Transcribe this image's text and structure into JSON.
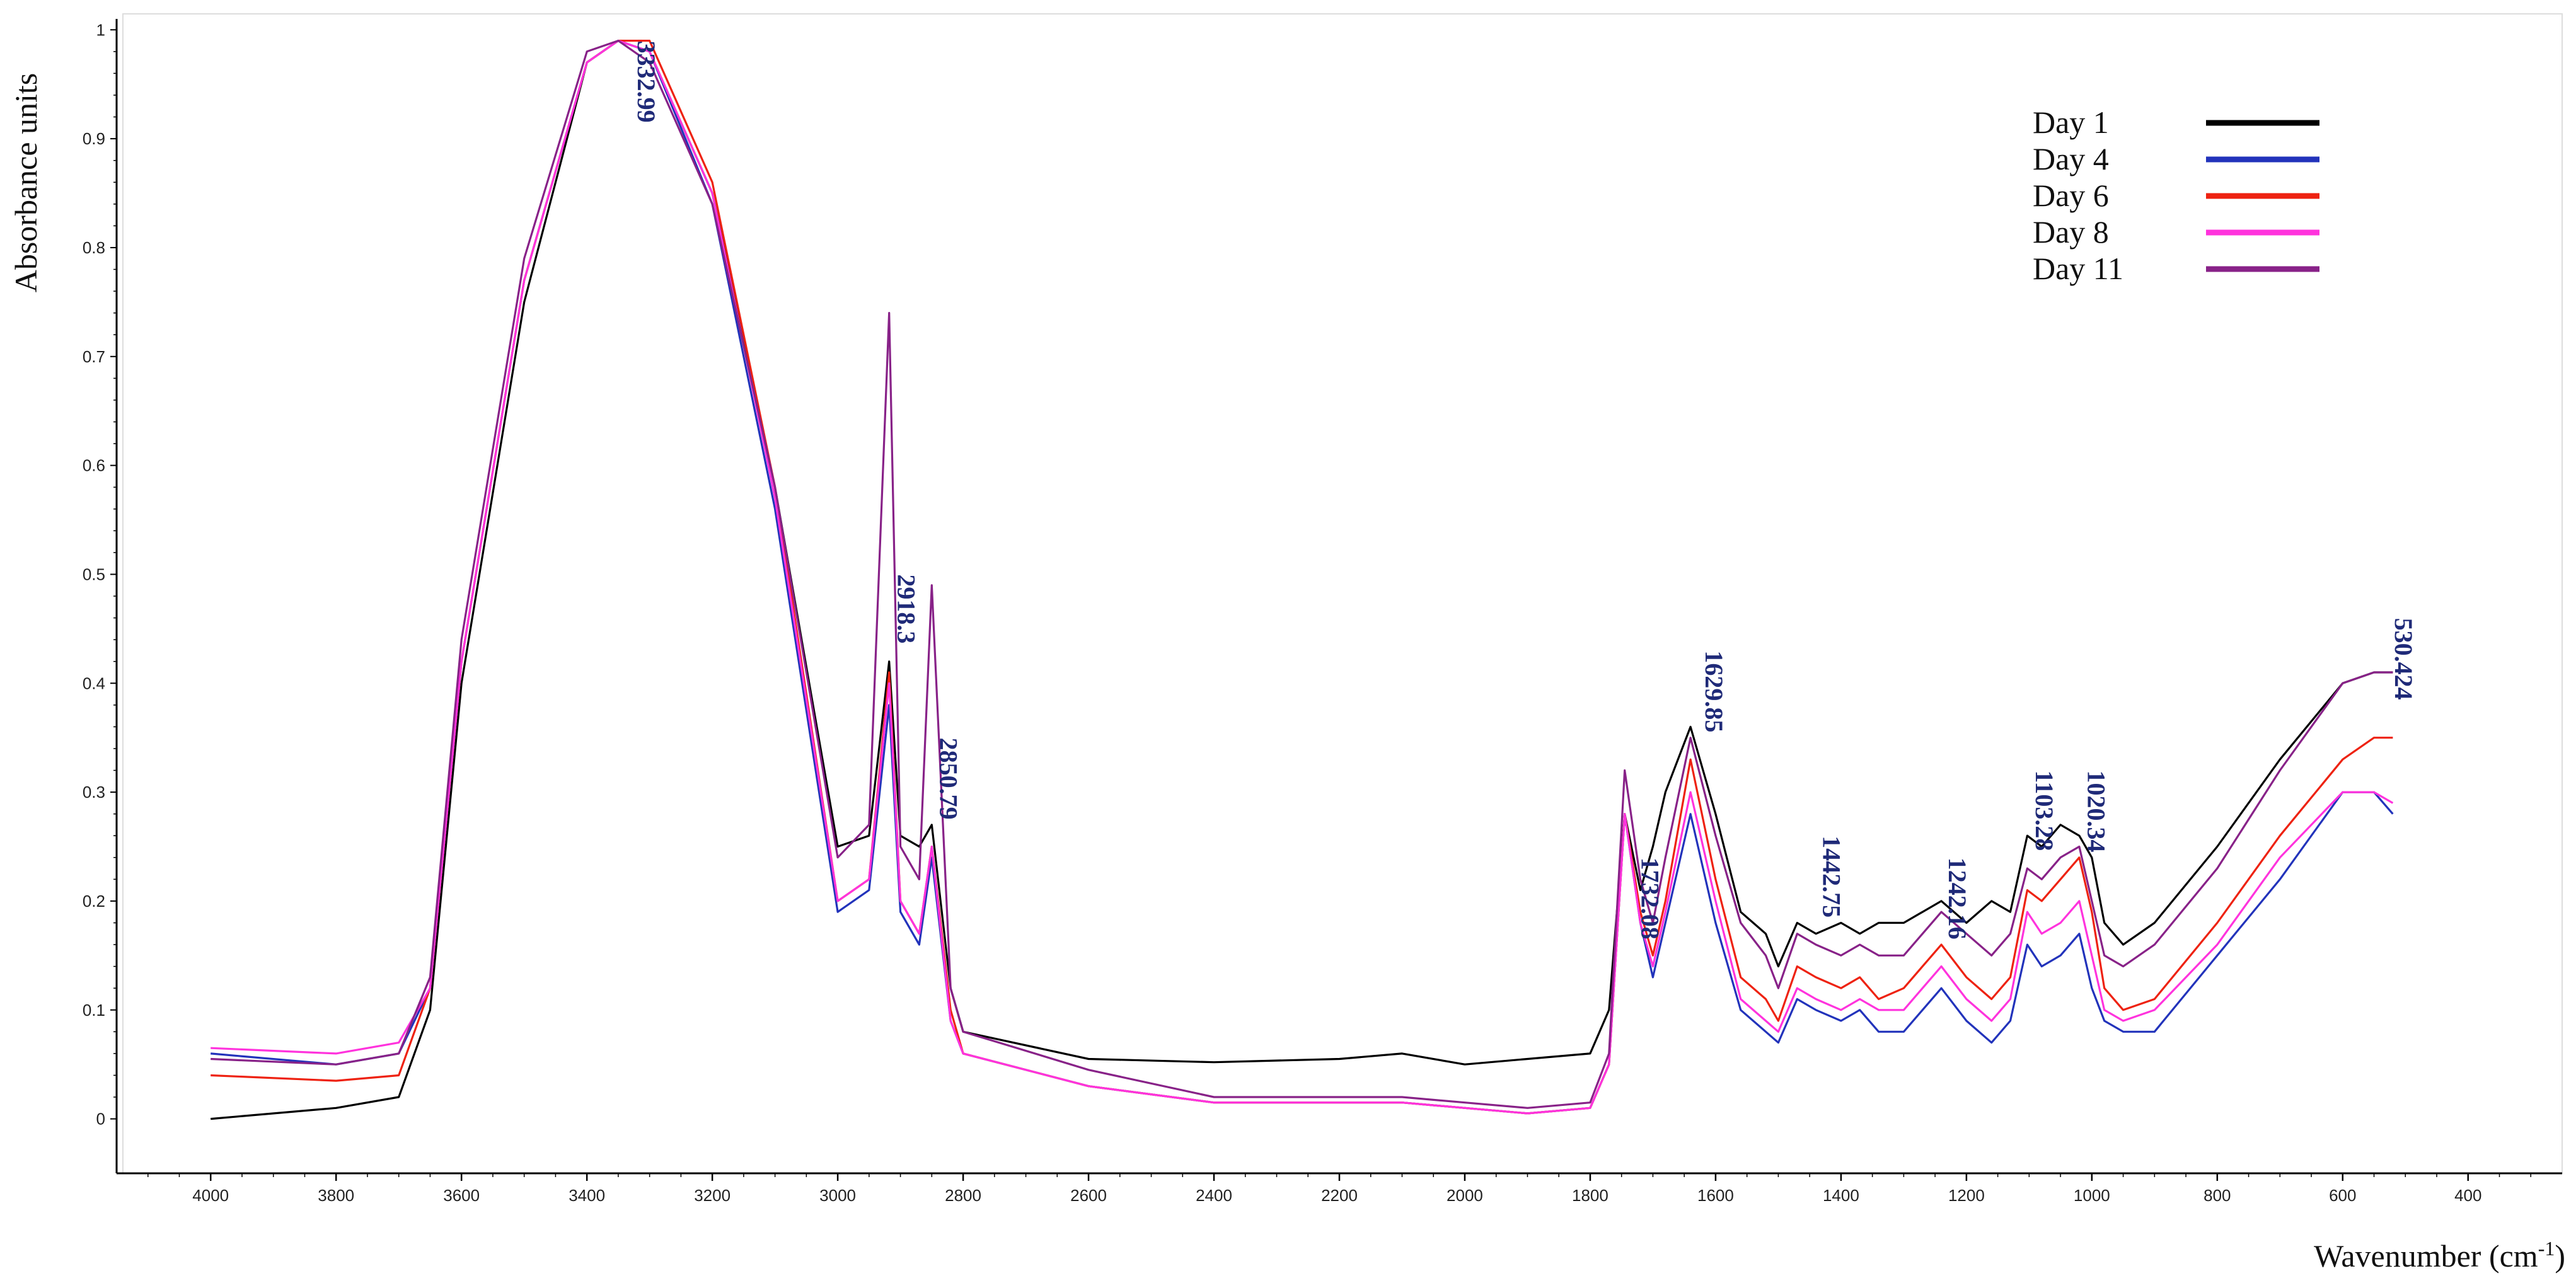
{
  "chart_data": {
    "type": "line",
    "xlabel": "Wavenumber (cm",
    "xlabel_sup": "-1",
    "xlabel_close": ")",
    "ylabel": "Absorbance units",
    "xlim": [
      4150,
      250
    ],
    "ylim": [
      -0.05,
      1.01
    ],
    "x_reversed": true,
    "x_ticks": [
      4000,
      3800,
      3600,
      3400,
      3200,
      3000,
      2800,
      2600,
      2400,
      2200,
      2000,
      1800,
      1600,
      1400,
      1200,
      1000,
      800,
      600,
      400
    ],
    "y_ticks": [
      0,
      0.1,
      0.2,
      0.3,
      0.4,
      0.5,
      0.6,
      0.7,
      0.8,
      0.9,
      1
    ],
    "y_tick_labels": [
      "0",
      "0.1",
      "0.2",
      "0.3",
      "0.4",
      "0.5",
      "0.6",
      "0.7",
      "0.8",
      "0.9",
      "1"
    ],
    "legend_position": "top-right",
    "series": [
      {
        "name": "Day 1",
        "color": "#000000",
        "x": [
          4000,
          3800,
          3700,
          3650,
          3600,
          3500,
          3400,
          3350,
          3300,
          3200,
          3100,
          3000,
          2950,
          2918,
          2900,
          2870,
          2850,
          2820,
          2800,
          2600,
          2400,
          2200,
          2100,
          2000,
          1900,
          1800,
          1770,
          1745,
          1720,
          1700,
          1680,
          1640,
          1600,
          1560,
          1520,
          1500,
          1470,
          1440,
          1400,
          1370,
          1340,
          1300,
          1270,
          1240,
          1200,
          1160,
          1130,
          1103,
          1080,
          1050,
          1020,
          1000,
          980,
          950,
          900,
          800,
          700,
          600,
          550,
          520
        ],
        "y": [
          0,
          0.01,
          0.02,
          0.1,
          0.4,
          0.75,
          0.97,
          0.99,
          0.98,
          0.85,
          0.58,
          0.25,
          0.26,
          0.42,
          0.26,
          0.25,
          0.27,
          0.12,
          0.08,
          0.055,
          0.052,
          0.055,
          0.06,
          0.05,
          0.055,
          0.06,
          0.1,
          0.28,
          0.21,
          0.25,
          0.3,
          0.36,
          0.28,
          0.19,
          0.17,
          0.14,
          0.18,
          0.17,
          0.18,
          0.17,
          0.18,
          0.18,
          0.19,
          0.2,
          0.18,
          0.2,
          0.19,
          0.26,
          0.25,
          0.27,
          0.26,
          0.24,
          0.18,
          0.16,
          0.18,
          0.25,
          0.33,
          0.4,
          0.41,
          0.41
        ]
      },
      {
        "name": "Day 4",
        "color": "#2233bb",
        "x": [
          4000,
          3800,
          3700,
          3650,
          3600,
          3500,
          3400,
          3350,
          3300,
          3200,
          3100,
          3000,
          2950,
          2918,
          2900,
          2870,
          2850,
          2820,
          2800,
          2600,
          2400,
          2200,
          2100,
          2000,
          1900,
          1800,
          1770,
          1745,
          1720,
          1700,
          1680,
          1640,
          1600,
          1560,
          1520,
          1500,
          1470,
          1440,
          1400,
          1370,
          1340,
          1300,
          1270,
          1240,
          1200,
          1160,
          1130,
          1103,
          1080,
          1050,
          1020,
          1000,
          980,
          950,
          900,
          800,
          700,
          600,
          550,
          520
        ],
        "y": [
          0.06,
          0.05,
          0.06,
          0.12,
          0.42,
          0.77,
          0.97,
          0.99,
          0.98,
          0.84,
          0.56,
          0.19,
          0.21,
          0.38,
          0.19,
          0.16,
          0.24,
          0.09,
          0.06,
          0.03,
          0.015,
          0.015,
          0.015,
          0.01,
          0.005,
          0.01,
          0.05,
          0.28,
          0.18,
          0.13,
          0.18,
          0.28,
          0.18,
          0.1,
          0.08,
          0.07,
          0.11,
          0.1,
          0.09,
          0.1,
          0.08,
          0.08,
          0.1,
          0.12,
          0.09,
          0.07,
          0.09,
          0.16,
          0.14,
          0.15,
          0.17,
          0.12,
          0.09,
          0.08,
          0.08,
          0.15,
          0.22,
          0.3,
          0.3,
          0.28
        ]
      },
      {
        "name": "Day 6",
        "color": "#ee2211",
        "x": [
          4000,
          3800,
          3700,
          3650,
          3600,
          3500,
          3400,
          3350,
          3300,
          3200,
          3100,
          3000,
          2950,
          2918,
          2900,
          2870,
          2850,
          2820,
          2800,
          2600,
          2400,
          2200,
          2100,
          2000,
          1900,
          1800,
          1770,
          1745,
          1720,
          1700,
          1680,
          1640,
          1600,
          1560,
          1520,
          1500,
          1470,
          1440,
          1400,
          1370,
          1340,
          1300,
          1270,
          1240,
          1200,
          1160,
          1130,
          1103,
          1080,
          1050,
          1020,
          1000,
          980,
          950,
          900,
          800,
          700,
          600,
          550,
          520
        ],
        "y": [
          0.04,
          0.035,
          0.04,
          0.12,
          0.42,
          0.77,
          0.97,
          0.99,
          0.99,
          0.86,
          0.58,
          0.2,
          0.22,
          0.41,
          0.2,
          0.17,
          0.25,
          0.1,
          0.06,
          0.03,
          0.015,
          0.015,
          0.015,
          0.01,
          0.005,
          0.01,
          0.05,
          0.28,
          0.19,
          0.15,
          0.2,
          0.33,
          0.22,
          0.13,
          0.11,
          0.09,
          0.14,
          0.13,
          0.12,
          0.13,
          0.11,
          0.12,
          0.14,
          0.16,
          0.13,
          0.11,
          0.13,
          0.21,
          0.2,
          0.22,
          0.24,
          0.19,
          0.12,
          0.1,
          0.11,
          0.18,
          0.26,
          0.33,
          0.35,
          0.35
        ]
      },
      {
        "name": "Day 8",
        "color": "#ff33dd",
        "x": [
          4000,
          3800,
          3700,
          3650,
          3600,
          3500,
          3400,
          3350,
          3300,
          3200,
          3100,
          3000,
          2950,
          2918,
          2900,
          2870,
          2850,
          2820,
          2800,
          2600,
          2400,
          2200,
          2100,
          2000,
          1900,
          1800,
          1770,
          1745,
          1720,
          1700,
          1680,
          1640,
          1600,
          1560,
          1520,
          1500,
          1470,
          1440,
          1400,
          1370,
          1340,
          1300,
          1270,
          1240,
          1200,
          1160,
          1130,
          1103,
          1080,
          1050,
          1020,
          1000,
          980,
          950,
          900,
          800,
          700,
          600,
          550,
          520
        ],
        "y": [
          0.065,
          0.06,
          0.07,
          0.12,
          0.42,
          0.77,
          0.97,
          0.99,
          0.98,
          0.85,
          0.57,
          0.2,
          0.22,
          0.4,
          0.2,
          0.17,
          0.25,
          0.09,
          0.06,
          0.03,
          0.015,
          0.015,
          0.015,
          0.01,
          0.005,
          0.01,
          0.05,
          0.28,
          0.18,
          0.14,
          0.19,
          0.3,
          0.2,
          0.11,
          0.09,
          0.08,
          0.12,
          0.11,
          0.1,
          0.11,
          0.1,
          0.1,
          0.12,
          0.14,
          0.11,
          0.09,
          0.11,
          0.19,
          0.17,
          0.18,
          0.2,
          0.15,
          0.1,
          0.09,
          0.1,
          0.16,
          0.24,
          0.3,
          0.3,
          0.29
        ]
      },
      {
        "name": "Day 11",
        "color": "#882288",
        "x": [
          4000,
          3800,
          3700,
          3650,
          3600,
          3500,
          3400,
          3350,
          3300,
          3200,
          3100,
          3000,
          2950,
          2918,
          2900,
          2870,
          2850,
          2820,
          2800,
          2600,
          2400,
          2200,
          2100,
          2000,
          1900,
          1800,
          1770,
          1745,
          1720,
          1700,
          1680,
          1640,
          1600,
          1560,
          1520,
          1500,
          1470,
          1440,
          1400,
          1370,
          1340,
          1300,
          1270,
          1240,
          1200,
          1160,
          1130,
          1103,
          1080,
          1050,
          1020,
          1000,
          980,
          950,
          900,
          800,
          700,
          600,
          550,
          520
        ],
        "y": [
          0.055,
          0.05,
          0.06,
          0.13,
          0.44,
          0.79,
          0.98,
          0.99,
          0.97,
          0.84,
          0.58,
          0.24,
          0.27,
          0.74,
          0.25,
          0.22,
          0.49,
          0.12,
          0.08,
          0.045,
          0.02,
          0.02,
          0.02,
          0.015,
          0.01,
          0.015,
          0.06,
          0.32,
          0.22,
          0.18,
          0.24,
          0.35,
          0.26,
          0.18,
          0.15,
          0.12,
          0.17,
          0.16,
          0.15,
          0.16,
          0.15,
          0.15,
          0.17,
          0.19,
          0.17,
          0.15,
          0.17,
          0.23,
          0.22,
          0.24,
          0.25,
          0.2,
          0.15,
          0.14,
          0.16,
          0.23,
          0.32,
          0.4,
          0.41,
          0.41
        ]
      }
    ],
    "annotations": [
      {
        "label": "3332.99",
        "x": 3332.99,
        "y": 0.99
      },
      {
        "label": "2918.3",
        "x": 2918.3,
        "y": 0.5
      },
      {
        "label": "2850.79",
        "x": 2850.79,
        "y": 0.35
      },
      {
        "label": "1732.08",
        "x": 1732.08,
        "y": 0.24
      },
      {
        "label": "1629.85",
        "x": 1629.85,
        "y": 0.43
      },
      {
        "label": "1442.75",
        "x": 1442.75,
        "y": 0.26
      },
      {
        "label": "1242.16",
        "x": 1242.16,
        "y": 0.24
      },
      {
        "label": "1103.28",
        "x": 1103.28,
        "y": 0.32
      },
      {
        "label": "1020.34",
        "x": 1020.34,
        "y": 0.32
      },
      {
        "label": "530.424",
        "x": 530.424,
        "y": 0.46
      }
    ]
  }
}
